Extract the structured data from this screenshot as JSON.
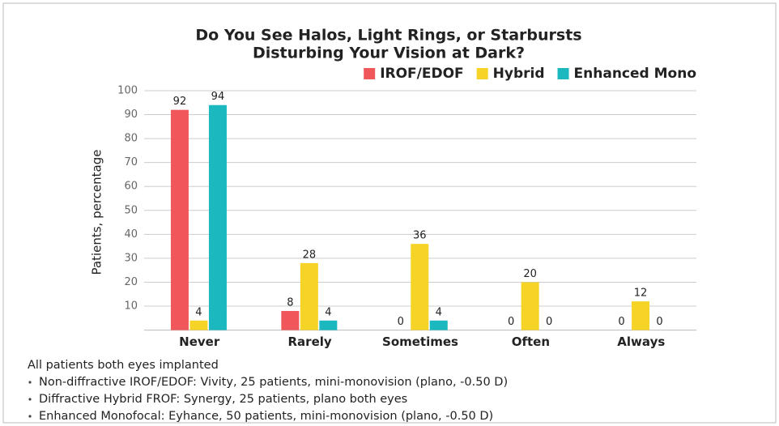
{
  "chart_data": {
    "type": "bar",
    "title": [
      "Do You See Halos, Light Rings, or Starbursts",
      "Disturbing Your Vision at Dark?"
    ],
    "y_label": "Patients, percentage",
    "categories": [
      "Never",
      "Rarely",
      "Sometimes",
      "Often",
      "Always"
    ],
    "series": [
      {
        "name": "IROF/EDOF",
        "color": "#f0575a",
        "values": [
          92,
          8,
          0,
          0,
          0
        ]
      },
      {
        "name": "Hybrid",
        "color": "#f5d327",
        "values": [
          4,
          28,
          36,
          20,
          12
        ]
      },
      {
        "name": "Enhanced Mono",
        "color": "#1bb8c0",
        "values": [
          94,
          4,
          4,
          0,
          0
        ]
      }
    ],
    "ylim": [
      0,
      100
    ],
    "yticks": [
      10,
      20,
      30,
      40,
      50,
      60,
      70,
      80,
      90,
      100
    ],
    "grid": true,
    "legend": "top-right",
    "notes": {
      "heading": "All patients both eyes implanted",
      "items": [
        "Non-diffractive IROF/EDOF: Vivity, 25 patients, mini-monovision (plano, -0.50 D)",
        "Diffractive Hybrid FROF: Synergy, 25 patients, plano both eyes",
        "Enhanced Monofocal: Eyhance, 50 patients, mini-monovision (plano, -0.50 D)"
      ]
    }
  }
}
